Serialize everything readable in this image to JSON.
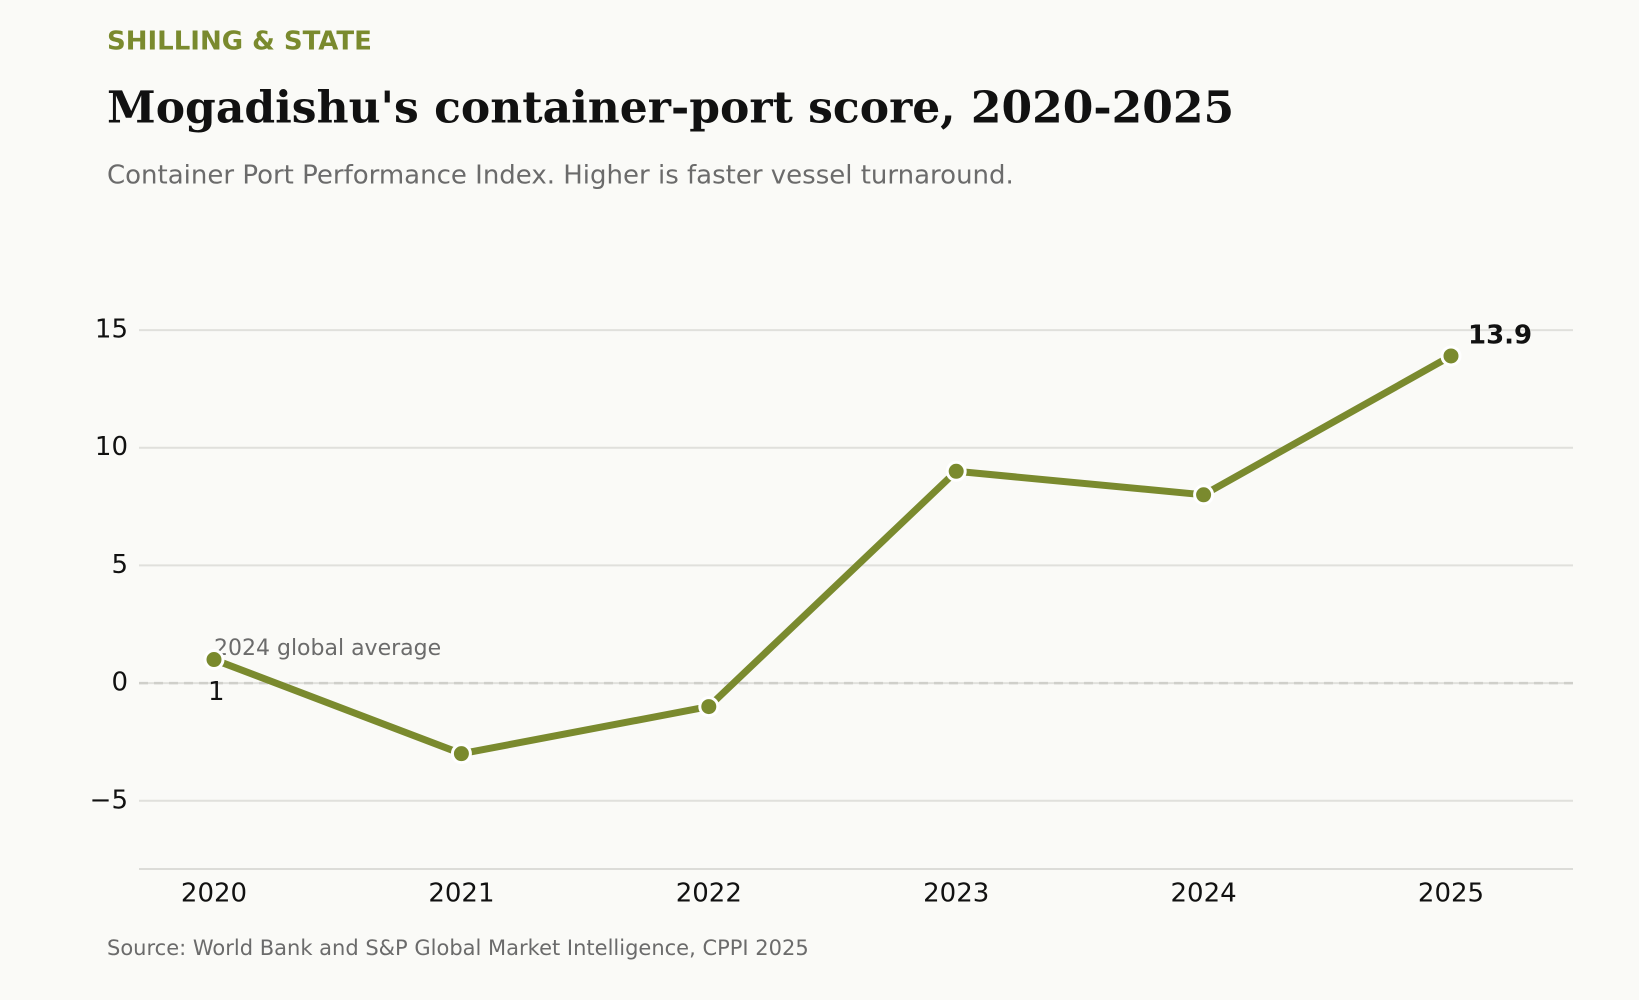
{
  "chart_data": {
    "type": "line",
    "kicker": "SHILLING & STATE",
    "title": "Mogadishu's container-port score, 2020-2025",
    "subtitle": "Container Port Performance Index. Higher is faster vessel turnaround.",
    "source": "Source: World Bank and S&P Global Market Intelligence, CPPI 2025",
    "categories": [
      "2020",
      "2021",
      "2022",
      "2023",
      "2024",
      "2025"
    ],
    "series": [
      {
        "name": "Container Port Performance Index",
        "color": "#7a8a2e",
        "values": [
          1,
          -3,
          -1,
          9,
          8,
          13.9
        ]
      }
    ],
    "ylim": [
      -7.9,
      17
    ],
    "yticks": [
      {
        "value": -5,
        "label": "−5"
      },
      0,
      5,
      10,
      15
    ],
    "grid": true,
    "reference_line": {
      "value": 0,
      "label": "2024 global average"
    }
  }
}
